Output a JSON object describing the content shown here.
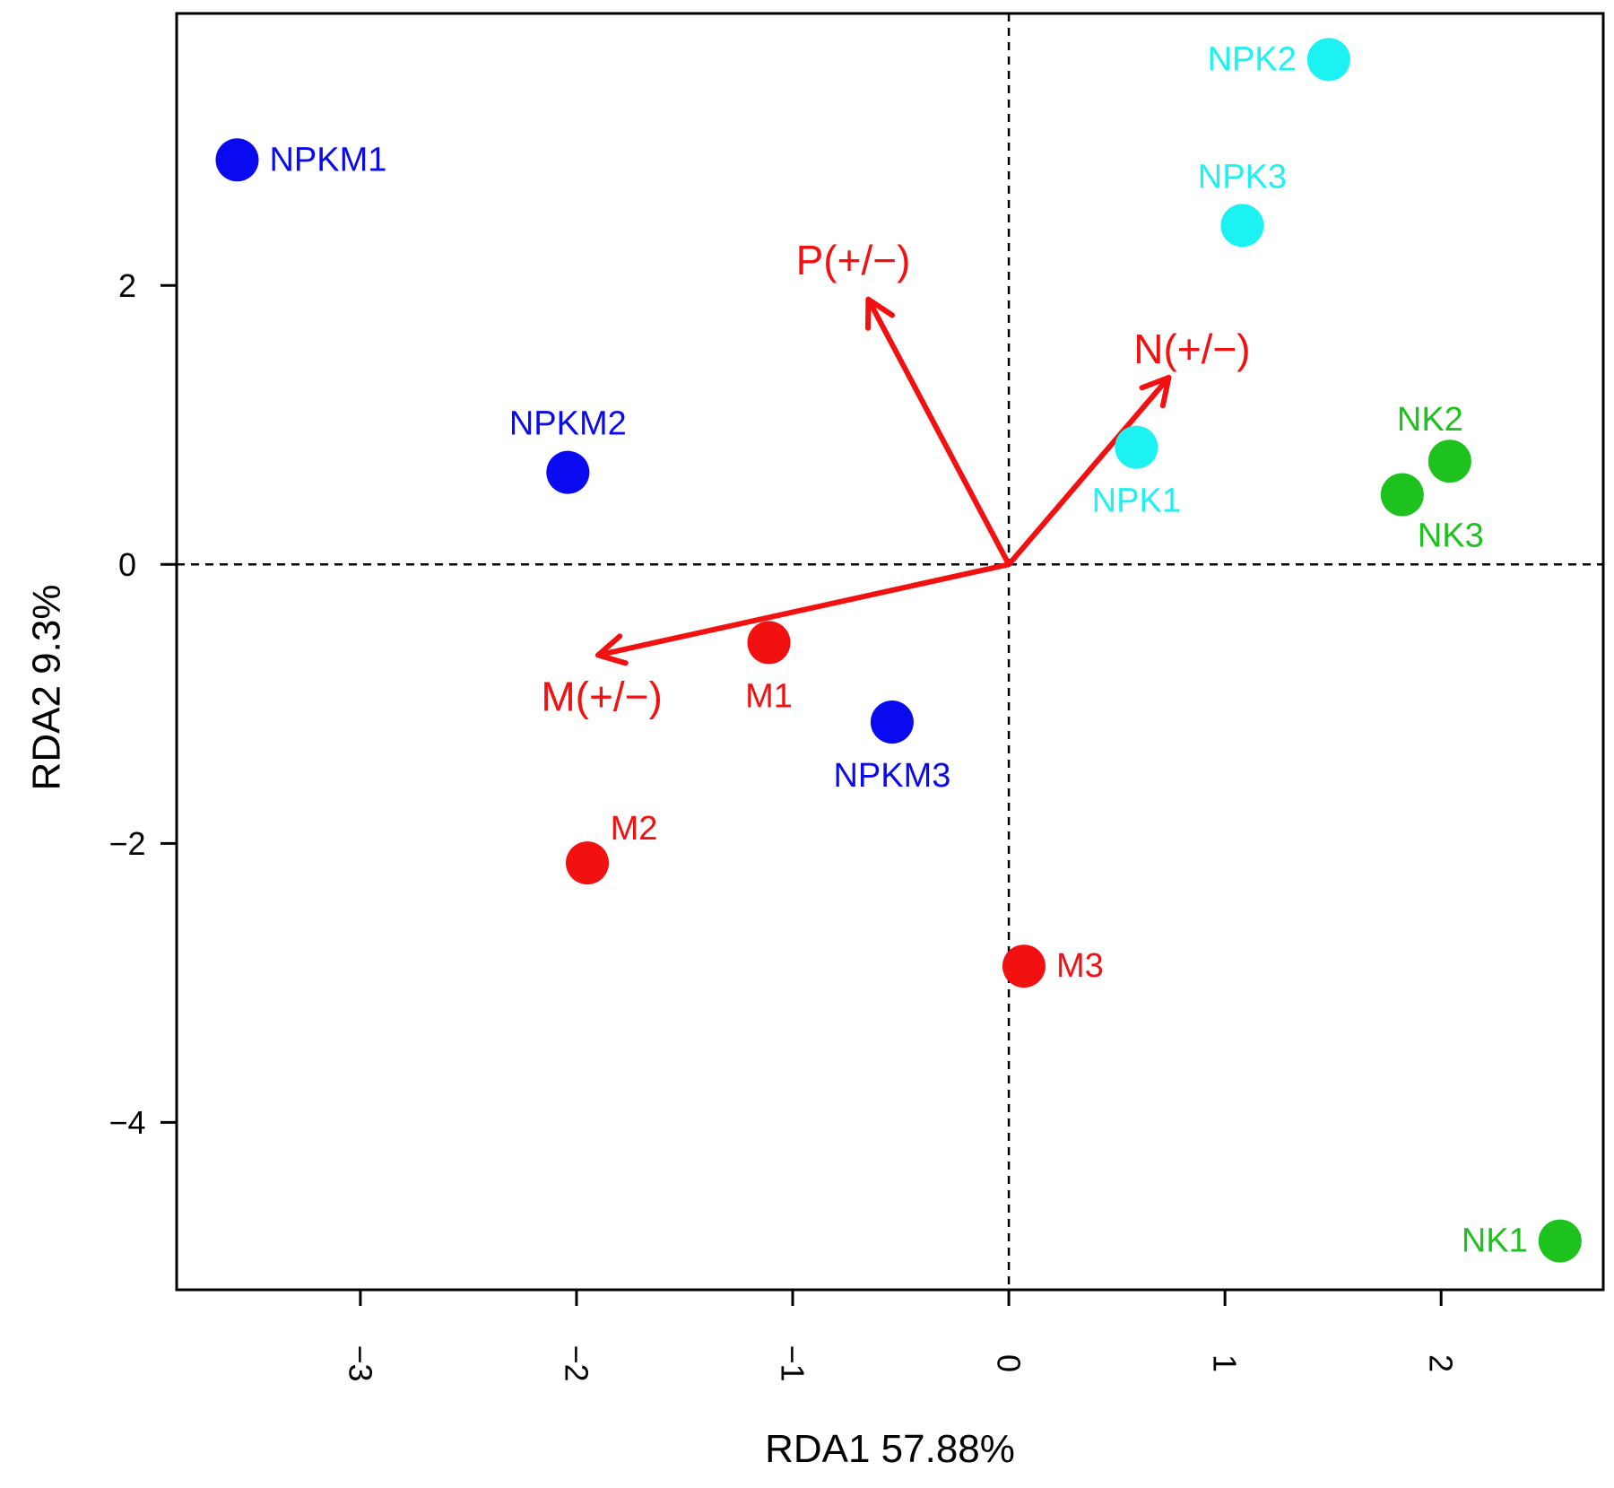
{
  "chart_data": {
    "type": "scatter",
    "title": "",
    "xlabel": "RDA1  57.88%",
    "ylabel": "RDA2  9.3%",
    "xlim": [
      -3.85,
      2.75
    ],
    "ylim": [
      -5.2,
      3.95
    ],
    "xticks": [
      -3,
      -2,
      -1,
      0,
      1,
      2
    ],
    "yticks": [
      -4,
      -2,
      0,
      2
    ],
    "xtick_labels": [
      "−3",
      "−2",
      "−1",
      "0",
      "1",
      "2"
    ],
    "ytick_labels": [
      "−4",
      "−2",
      "0",
      "2"
    ],
    "reference_lines": {
      "x": 0,
      "y": 0,
      "style": "dashed"
    },
    "groups": [
      {
        "name": "NPKM",
        "color": "#0a0af0"
      },
      {
        "name": "NPK",
        "color": "#1cf2f2"
      },
      {
        "name": "NK",
        "color": "#1ec21e"
      },
      {
        "name": "M",
        "color": "#f21010"
      }
    ],
    "points": [
      {
        "label": "NPKM1",
        "x": -3.57,
        "y": 2.9,
        "group": "NPKM",
        "label_pos": "right"
      },
      {
        "label": "NPKM2",
        "x": -2.04,
        "y": 0.66,
        "group": "NPKM",
        "label_pos": "above"
      },
      {
        "label": "NPKM3",
        "x": -0.54,
        "y": -1.13,
        "group": "NPKM",
        "label_pos": "below"
      },
      {
        "label": "NPK1",
        "x": 0.59,
        "y": 0.84,
        "group": "NPK",
        "label_pos": "below"
      },
      {
        "label": "NPK2",
        "x": 1.48,
        "y": 3.62,
        "group": "NPK",
        "label_pos": "left"
      },
      {
        "label": "NPK3",
        "x": 1.08,
        "y": 2.43,
        "group": "NPK",
        "label_pos": "above"
      },
      {
        "label": "NK1",
        "x": 2.55,
        "y": -4.85,
        "group": "NK",
        "label_pos": "left"
      },
      {
        "label": "NK2",
        "x": 2.04,
        "y": 0.74,
        "group": "NK",
        "label_pos": "above-left"
      },
      {
        "label": "NK3",
        "x": 1.82,
        "y": 0.5,
        "group": "NK",
        "label_pos": "below-right"
      },
      {
        "label": "M1",
        "x": -1.11,
        "y": -0.56,
        "group": "M",
        "label_pos": "below"
      },
      {
        "label": "M2",
        "x": -1.95,
        "y": -2.14,
        "group": "M",
        "label_pos": "above-right"
      },
      {
        "label": "M3",
        "x": 0.07,
        "y": -2.88,
        "group": "M",
        "label_pos": "right"
      }
    ],
    "arrows": [
      {
        "label": "P(+/−)",
        "x": -0.65,
        "y": 1.9,
        "color": "#f21010"
      },
      {
        "label": "N(+/−)",
        "x": 0.74,
        "y": 1.34,
        "color": "#f21010"
      },
      {
        "label": "M(+/−)",
        "x": -1.9,
        "y": -0.65,
        "color": "#f21010"
      }
    ]
  }
}
